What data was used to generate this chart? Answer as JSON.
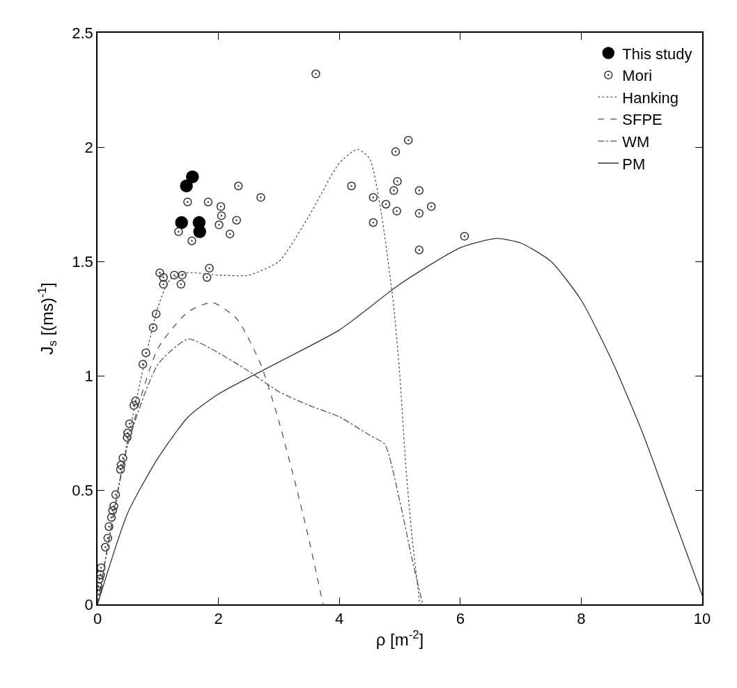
{
  "chart_data": {
    "type": "scatter",
    "xlabel": "ρ [m$^{-2}$]",
    "ylabel": "J$_{s}$ [(ms)$^{-1}$]",
    "xlim": [
      0,
      10
    ],
    "ylim": [
      0,
      2.5
    ],
    "xticks": [
      0,
      2,
      4,
      6,
      8,
      10
    ],
    "yticks": [
      0,
      0.5,
      1,
      1.5,
      2,
      2.5
    ],
    "legend": "top right",
    "series": [
      {
        "name": "This study",
        "marker": "circle",
        "color": "#000000",
        "x": [
          1.39,
          1.47,
          1.57,
          1.68,
          1.69
        ],
        "values": [
          1.67,
          1.83,
          1.87,
          1.67,
          1.63
        ]
      },
      {
        "name": "Mori",
        "marker": "circle-dot",
        "color": "#333333",
        "x": [
          3.61,
          5.14,
          4.93,
          4.2,
          4.96,
          4.9,
          5.32,
          4.56,
          4.77,
          4.95,
          5.52,
          5.32,
          4.56,
          6.07,
          5.32,
          2.33,
          2.7,
          1.49,
          1.83,
          2.04,
          2.05,
          2.01,
          2.3,
          2.19,
          1.34,
          1.56,
          1.85,
          1.81,
          1.03,
          1.09,
          1.09,
          1.27,
          1.4,
          1.38,
          0.97,
          0.92,
          0.8,
          0.75,
          0.63,
          0.6,
          0.53,
          0.5,
          0.49,
          0.42,
          0.39,
          0.38,
          0.3,
          0.27,
          0.25,
          0.23,
          0.19,
          0.17,
          0.13,
          0.06,
          0.05,
          0.03,
          0.01,
          0.0
        ],
        "values": [
          2.32,
          2.03,
          1.98,
          1.83,
          1.85,
          1.81,
          1.81,
          1.78,
          1.75,
          1.72,
          1.74,
          1.71,
          1.67,
          1.61,
          1.55,
          1.83,
          1.78,
          1.76,
          1.76,
          1.74,
          1.7,
          1.66,
          1.68,
          1.62,
          1.63,
          1.59,
          1.47,
          1.43,
          1.45,
          1.43,
          1.4,
          1.44,
          1.44,
          1.4,
          1.27,
          1.21,
          1.1,
          1.05,
          0.89,
          0.87,
          0.79,
          0.75,
          0.73,
          0.64,
          0.61,
          0.59,
          0.48,
          0.43,
          0.41,
          0.38,
          0.34,
          0.29,
          0.25,
          0.16,
          0.13,
          0.11,
          0.08,
          0.06
        ]
      },
      {
        "name": "Hanking",
        "type": "line",
        "line_style": "dotted",
        "color": "#555555",
        "x": [
          0,
          0.5,
          1.0,
          1.2,
          1.5,
          2,
          2.5,
          3,
          3.5,
          4,
          4.3,
          4.5,
          4.7,
          4.9,
          5.0,
          5.1,
          5.2,
          5.33
        ],
        "values": [
          0,
          0.72,
          1.3,
          1.42,
          1.45,
          1.44,
          1.44,
          1.5,
          1.7,
          1.93,
          1.99,
          1.95,
          1.7,
          1.3,
          1.0,
          0.6,
          0.3,
          0
        ]
      },
      {
        "name": "SFPE",
        "type": "line",
        "line_style": "dashed",
        "color": "#555555",
        "x": [
          0,
          0.5,
          1,
          1.5,
          1.9,
          2.3,
          2.7,
          3.0,
          3.3,
          3.5,
          3.73
        ],
        "values": [
          0,
          0.7,
          1.12,
          1.28,
          1.32,
          1.25,
          1.05,
          0.8,
          0.5,
          0.28,
          0
        ]
      },
      {
        "name": "WM",
        "type": "line",
        "line_style": "dashdot",
        "color": "#555555",
        "x": [
          0,
          0.5,
          1,
          1.5,
          2,
          2.5,
          3,
          3.5,
          4,
          4.5,
          4.75,
          5.0,
          5.2,
          5.38
        ],
        "values": [
          0,
          0.7,
          1.05,
          1.16,
          1.1,
          1.02,
          0.93,
          0.87,
          0.82,
          0.74,
          0.7,
          0.45,
          0.2,
          0
        ]
      },
      {
        "name": "PM",
        "type": "line",
        "line_style": "solid",
        "color": "#333333",
        "x": [
          0,
          0.5,
          1,
          1.5,
          2,
          3,
          4,
          5,
          6,
          6.6,
          7,
          7.5,
          8,
          8.5,
          9,
          9.5,
          10
        ],
        "values": [
          0,
          0.4,
          0.64,
          0.82,
          0.92,
          1.06,
          1.2,
          1.4,
          1.56,
          1.6,
          1.58,
          1.5,
          1.33,
          1.07,
          0.76,
          0.4,
          0.04
        ]
      }
    ]
  }
}
